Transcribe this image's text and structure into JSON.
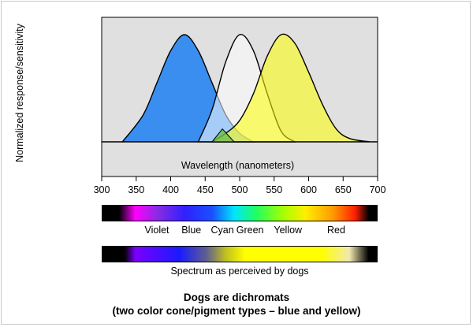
{
  "chart_data": {
    "type": "area",
    "xlabel": "Wavelength (nanometers)",
    "ylabel": "Normalized response/sensitivity",
    "xlim": [
      300,
      700
    ],
    "ylim": [
      0,
      1
    ],
    "x_ticks": [
      "300",
      "350",
      "400",
      "450",
      "500",
      "550",
      "600",
      "650",
      "700"
    ],
    "grid": false,
    "background_color": "#e0e0e0",
    "series": [
      {
        "color": "#3a8ef0",
        "x": [
          330,
          360,
          380,
          400,
          420,
          440,
          460,
          480,
          500,
          520
        ],
        "values": [
          0,
          0.25,
          0.55,
          0.85,
          1.0,
          0.85,
          0.55,
          0.25,
          0.08,
          0
        ]
      },
      {
        "color": "#ffffff",
        "x": [
          440,
          460,
          480,
          500,
          520,
          540,
          560,
          580
        ],
        "values": [
          0,
          0.3,
          0.75,
          1.0,
          0.85,
          0.45,
          0.1,
          0
        ]
      },
      {
        "color": "#ffff00",
        "x": [
          460,
          480,
          500,
          520,
          540,
          560,
          580,
          600,
          620,
          640,
          660,
          690
        ],
        "values": [
          0,
          0.08,
          0.2,
          0.45,
          0.8,
          1.0,
          0.92,
          0.65,
          0.35,
          0.12,
          0.03,
          0
        ]
      }
    ]
  },
  "spectrum": {
    "color_labels": [
      {
        "name": "Violet",
        "wavelength": 380
      },
      {
        "name": "Blue",
        "wavelength": 430
      },
      {
        "name": "Cyan",
        "wavelength": 475
      },
      {
        "name": "Green",
        "wavelength": 515
      },
      {
        "name": "Yellow",
        "wavelength": 570
      },
      {
        "name": "Red",
        "wavelength": 640
      }
    ],
    "dog_caption": "Spectrum as perceived by dogs"
  },
  "title": {
    "line1": "Dogs are dichromats",
    "line2": "(two color cone/pigment types – blue and yellow)"
  },
  "colors": {
    "plot_background": "#e0e0e0",
    "blue_curve": "#3a8ef0",
    "white_curve": "#ffffff",
    "yellow_curve": "#ffff00"
  }
}
